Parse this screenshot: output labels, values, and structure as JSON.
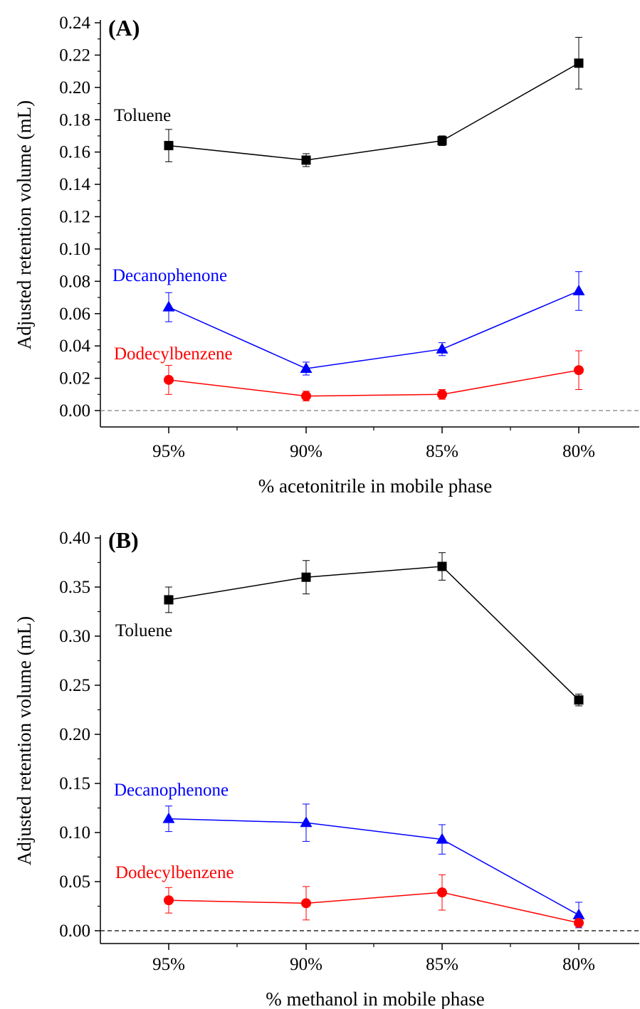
{
  "chart_data": [
    {
      "type": "line",
      "panel_label": "(A)",
      "xlabel": "% acetonitrile in mobile phase",
      "ylabel": "Adjusted retention volume (mL)",
      "categories": [
        "95%",
        "90%",
        "85%",
        "80%"
      ],
      "ylim": [
        0,
        0.24
      ],
      "yticks": [
        "0.00",
        "0.02",
        "0.04",
        "0.06",
        "0.08",
        "0.10",
        "0.12",
        "0.14",
        "0.16",
        "0.18",
        "0.20",
        "0.22",
        "0.24"
      ],
      "ytick_values": [
        0,
        0.02,
        0.04,
        0.06,
        0.08,
        0.1,
        0.12,
        0.14,
        0.16,
        0.18,
        0.2,
        0.22,
        0.24
      ],
      "zero_line": "dashed gray",
      "series": [
        {
          "name": "Toluene",
          "color": "#000000",
          "marker": "square",
          "values": [
            0.164,
            0.155,
            0.167,
            0.215
          ],
          "errors": [
            0.01,
            0.004,
            0.003,
            0.016
          ]
        },
        {
          "name": "Decanophenone",
          "color": "#0000ff",
          "marker": "triangle",
          "values": [
            0.064,
            0.026,
            0.038,
            0.074
          ],
          "errors": [
            0.009,
            0.004,
            0.004,
            0.012
          ]
        },
        {
          "name": "Dodecylbenzene",
          "color": "#ff0000",
          "marker": "circle",
          "values": [
            0.019,
            0.009,
            0.01,
            0.025
          ],
          "errors": [
            0.009,
            0.003,
            0.003,
            0.012
          ]
        }
      ]
    },
    {
      "type": "line",
      "panel_label": "(B)",
      "xlabel": "% methanol in mobile phase",
      "ylabel": "Adjusted retention volume (mL)",
      "categories": [
        "95%",
        "90%",
        "85%",
        "80%"
      ],
      "ylim": [
        0,
        0.4
      ],
      "yticks": [
        "0.00",
        "0.05",
        "0.10",
        "0.15",
        "0.20",
        "0.25",
        "0.30",
        "0.35",
        "0.40"
      ],
      "ytick_values": [
        0,
        0.05,
        0.1,
        0.15,
        0.2,
        0.25,
        0.3,
        0.35,
        0.4
      ],
      "zero_line": "dashed black",
      "series": [
        {
          "name": "Toluene",
          "color": "#000000",
          "marker": "square",
          "values": [
            0.337,
            0.36,
            0.371,
            0.235
          ],
          "errors": [
            0.013,
            0.017,
            0.014,
            0.006
          ]
        },
        {
          "name": "Decanophenone",
          "color": "#0000ff",
          "marker": "triangle",
          "values": [
            0.114,
            0.11,
            0.093,
            0.016
          ],
          "errors": [
            0.013,
            0.019,
            0.015,
            0.013
          ]
        },
        {
          "name": "Dodecylbenzene",
          "color": "#ff0000",
          "marker": "circle",
          "values": [
            0.031,
            0.028,
            0.039,
            0.008
          ],
          "errors": [
            0.013,
            0.017,
            0.018,
            0.003
          ]
        }
      ]
    }
  ]
}
